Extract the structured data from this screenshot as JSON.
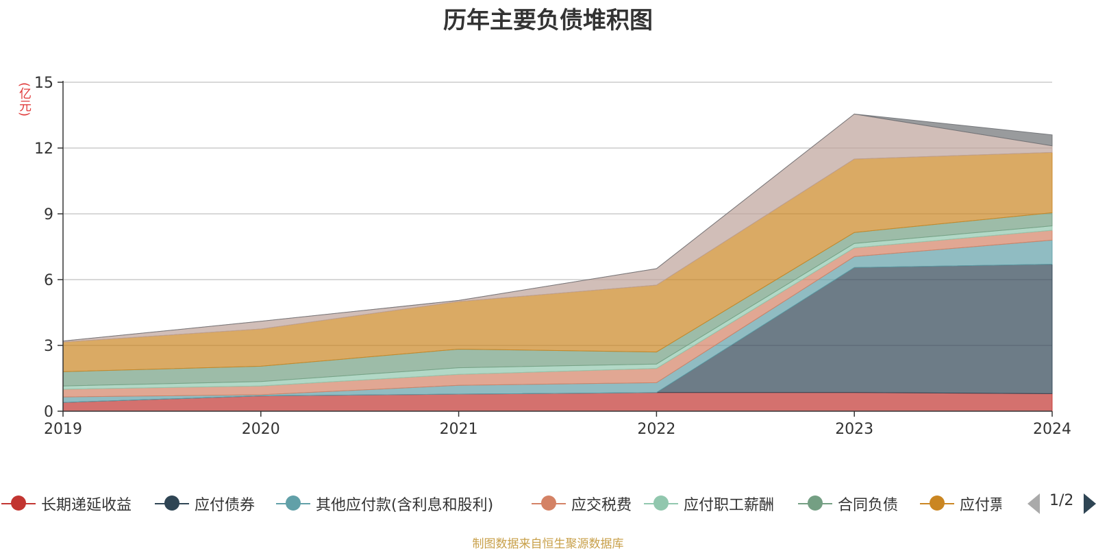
{
  "chart_data": {
    "type": "area",
    "stacked": true,
    "title": "历年主要负债堆积图",
    "ylabel": "(亿元)",
    "x": [
      "2019",
      "2020",
      "2021",
      "2022",
      "2023",
      "2024"
    ],
    "yticks": [
      "0",
      "3",
      "6",
      "9",
      "12",
      "15"
    ],
    "ylim": [
      0,
      15
    ],
    "grid": true,
    "series": [
      {
        "name": "长期递延收益",
        "color": "#c23531",
        "values": [
          0.4,
          0.7,
          0.78,
          0.85,
          0.85,
          0.8
        ]
      },
      {
        "name": "应付债券",
        "color": "#2f4554",
        "values": [
          0,
          0,
          0,
          0,
          5.7,
          5.9
        ]
      },
      {
        "name": "其他应付款(含利息和股利)",
        "color": "#61a0a8",
        "values": [
          0.25,
          0.05,
          0.4,
          0.45,
          0.5,
          1.1
        ]
      },
      {
        "name": "应交税费",
        "color": "#d48265",
        "values": [
          0.35,
          0.4,
          0.5,
          0.65,
          0.4,
          0.45
        ]
      },
      {
        "name": "应付职工薪酬",
        "color": "#91c7ae",
        "values": [
          0.15,
          0.2,
          0.3,
          0.2,
          0.2,
          0.2
        ]
      },
      {
        "name": "合同负债",
        "color": "#749f83",
        "values": [
          0.65,
          0.7,
          0.85,
          0.55,
          0.5,
          0.6
        ]
      },
      {
        "name": "应付票据",
        "color": "#ca8622",
        "values": [
          1.35,
          1.7,
          2.17,
          3.05,
          3.35,
          2.75
        ]
      },
      {
        "name": "",
        "color": "#bda29a",
        "values": [
          0.05,
          0.35,
          0.05,
          0.75,
          2.05,
          0.3
        ]
      },
      {
        "name": "",
        "color": "#6e7074",
        "values": [
          0,
          0,
          0,
          0,
          0,
          0.5
        ]
      }
    ],
    "legend_position": "bottom"
  },
  "legend": {
    "visible_labels": [
      "长期递延收益",
      "应付债券",
      "其他应付款(含利息和股利)",
      "应交税费",
      "应付职工薪酬",
      "合同负债",
      "应付票据"
    ],
    "page_indicator": "1/2"
  },
  "footer": {
    "source": "制图数据来自恒生聚源数据库"
  }
}
